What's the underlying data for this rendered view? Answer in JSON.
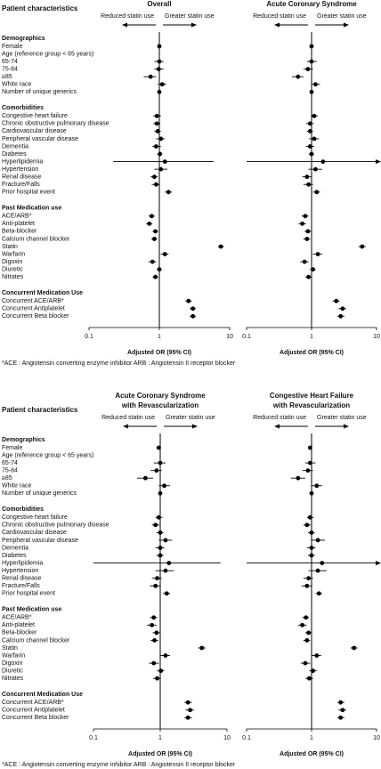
{
  "chart_data": [
    {
      "type": "forest",
      "title": "Overall",
      "row_header": "Patient characteristics",
      "left_direction": "Reduced statin use",
      "right_direction": "Greater statin use",
      "xlabel": "Adjusted OR (95% CI)",
      "log_scale": true,
      "xlim": [
        0.1,
        10
      ],
      "xticks": [
        0.1,
        1,
        10
      ],
      "color": "#000000",
      "note": "*ACE : Angiotensin converting enzyme inhibitor   ARB : Angiotensin II receptor blocker",
      "groups": [
        {
          "name": "Demographics",
          "categories": [
            "Female",
            "Age (reference group < 65 years)",
            "65-74",
            "75-84",
            "≥85",
            "White race",
            "Number of unique generics"
          ],
          "values": [
            1.0,
            null,
            1.0,
            0.98,
            0.75,
            1.1,
            1.0
          ],
          "lower": [
            0.95,
            null,
            0.85,
            0.85,
            0.6,
            0.95,
            0.98
          ],
          "upper": [
            1.05,
            null,
            1.15,
            1.15,
            0.9,
            1.25,
            1.02
          ]
        },
        {
          "name": "Comorbidities",
          "categories": [
            "Congestive heart failure",
            "Chronic obstructive pulmonary disease",
            "Cardiovascular disease",
            "Peripheral vascular disease",
            "Dementia",
            "Diabetes",
            "Hyperlipidemia",
            "Hypertension",
            "Renal disease",
            "Fracture/Falls",
            "Prior hospital event"
          ],
          "values": [
            0.92,
            0.92,
            0.95,
            1.05,
            0.9,
            1.02,
            1.2,
            1.05,
            0.85,
            0.9,
            1.35
          ],
          "lower": [
            0.82,
            0.82,
            0.85,
            0.9,
            0.8,
            0.93,
            0.22,
            0.85,
            0.75,
            0.78,
            1.2
          ],
          "upper": [
            1.05,
            1.03,
            1.05,
            1.2,
            1.05,
            1.1,
            5.9,
            1.3,
            0.95,
            1.02,
            1.5
          ]
        },
        {
          "name": "Past Medication use",
          "categories": [
            "ACE/ARB*",
            "Anti-platelet",
            "Beta-blocker",
            "Calcium channel blocker",
            "Statin",
            "Warfarin",
            "Digoxin",
            "Diuretic",
            "Nitrates"
          ],
          "values": [
            0.78,
            0.72,
            0.88,
            0.85,
            7.5,
            1.2,
            0.8,
            1.0,
            0.88
          ],
          "lower": [
            0.7,
            0.65,
            0.8,
            0.77,
            6.8,
            1.05,
            0.7,
            0.92,
            0.8
          ],
          "upper": [
            0.86,
            0.8,
            0.96,
            0.93,
            8.3,
            1.35,
            0.9,
            1.08,
            0.96
          ]
        },
        {
          "name": "Concurrent Medication Use",
          "categories": [
            "Concurrent ACE/ARB*",
            "Concurrent Antiplatelet",
            "Concurrent Beta blocker"
          ],
          "values": [
            2.6,
            3.0,
            3.0
          ],
          "lower": [
            2.35,
            2.7,
            2.7
          ],
          "upper": [
            2.9,
            3.3,
            3.3
          ]
        }
      ]
    },
    {
      "type": "forest",
      "title": "Acute Coronary Syndrome",
      "left_direction": "Reduced statin use",
      "right_direction": "Greater statin use",
      "xlabel": "Adjusted OR (95% CI)",
      "log_scale": true,
      "xlim": [
        0.1,
        10
      ],
      "xticks": [
        0.1,
        1,
        10
      ],
      "color": "#000000",
      "groups": [
        {
          "values": [
            1.0,
            null,
            1.0,
            0.88,
            0.62,
            1.15,
            1.0
          ],
          "lower": [
            0.93,
            null,
            0.85,
            0.75,
            0.5,
            1.0,
            0.97
          ],
          "upper": [
            1.07,
            null,
            1.2,
            1.05,
            0.75,
            1.35,
            1.03
          ]
        },
        {
          "values": [
            1.1,
            0.95,
            0.95,
            1.1,
            0.95,
            1.0,
            1.5,
            1.15,
            0.85,
            0.9,
            1.2
          ],
          "lower": [
            0.98,
            0.82,
            0.85,
            0.92,
            0.82,
            0.9,
            0.1,
            0.9,
            0.72,
            0.75,
            1.05
          ],
          "upper": [
            1.25,
            1.08,
            1.05,
            1.3,
            1.1,
            1.1,
            10,
            1.45,
            1.0,
            1.05,
            1.35
          ]
        },
        {
          "values": [
            0.8,
            0.72,
            0.88,
            0.85,
            6.0,
            1.25,
            0.78,
            1.05,
            0.9
          ],
          "lower": [
            0.7,
            0.63,
            0.78,
            0.75,
            5.3,
            1.05,
            0.67,
            0.95,
            0.8
          ],
          "upper": [
            0.9,
            0.82,
            0.98,
            0.95,
            6.8,
            1.45,
            0.9,
            1.15,
            1.0
          ]
        },
        {
          "values": [
            2.4,
            3.0,
            2.8
          ],
          "lower": [
            2.1,
            2.6,
            2.5
          ],
          "upper": [
            2.7,
            3.4,
            3.2
          ]
        }
      ]
    },
    {
      "type": "forest",
      "title": [
        "Acute Coronary Syndrome",
        "with Revascularization"
      ],
      "row_header": "Patient characteristics",
      "left_direction": "Reduced statin use",
      "right_direction": "Greater statin use",
      "xlabel": "Adjusted OR (95% CI)",
      "log_scale": true,
      "xlim": [
        0.1,
        10
      ],
      "xticks": [
        0.1,
        1,
        10
      ],
      "color": "#000000",
      "note": "*ACE : Angiotensin converting enzyme inhibitor   ARB : Angiotensin II receptor blocker",
      "groups": [
        {
          "name": "Demographics",
          "categories": [
            "Female",
            "Age (reference group < 65 years)",
            "65-74",
            "75-84",
            "≥85",
            "White race",
            "Number of unique generics"
          ],
          "values": [
            0.95,
            null,
            1.0,
            0.88,
            0.6,
            1.15,
            1.0
          ],
          "lower": [
            0.88,
            null,
            0.8,
            0.72,
            0.45,
            0.95,
            0.97
          ],
          "upper": [
            1.03,
            null,
            1.2,
            1.05,
            0.78,
            1.4,
            1.03
          ]
        },
        {
          "name": "Comorbidities",
          "categories": [
            "Congestive heart failure",
            "Chronic obstructive pulmonary disease",
            "Cardiovascular disease",
            "Peripheral vascular disease",
            "Dementia",
            "Diabetes",
            "Hyperlipidemia",
            "Hypertension",
            "Renal disease",
            "Fracture/Falls",
            "Prior hospital event"
          ],
          "values": [
            0.95,
            0.85,
            1.0,
            1.2,
            1.0,
            1.0,
            1.35,
            1.2,
            0.9,
            0.85,
            1.25
          ],
          "lower": [
            0.85,
            0.75,
            0.88,
            0.95,
            0.85,
            0.88,
            0.1,
            0.85,
            0.75,
            0.7,
            1.1
          ],
          "upper": [
            1.08,
            0.97,
            1.12,
            1.5,
            1.15,
            1.12,
            8,
            1.6,
            1.05,
            1.02,
            1.4
          ]
        },
        {
          "name": "Past Medication use",
          "categories": [
            "ACE/ARB*",
            "Anti-platelet",
            "Beta-blocker",
            "Calcium channel blocker",
            "Statin",
            "Warfarin",
            "Digoxin",
            "Diuretic",
            "Nitrates"
          ],
          "values": [
            0.8,
            0.75,
            0.88,
            0.82,
            4.2,
            1.2,
            0.8,
            1.02,
            0.9
          ],
          "lower": [
            0.7,
            0.63,
            0.77,
            0.72,
            3.7,
            1.0,
            0.68,
            0.9,
            0.78
          ],
          "upper": [
            0.9,
            0.88,
            1.0,
            0.93,
            4.8,
            1.4,
            0.95,
            1.15,
            1.02
          ]
        },
        {
          "name": "Concurrent Medication Use",
          "categories": [
            "Concurrent ACE/ARB*",
            "Concurrent Antiplatelet",
            "Concurrent Beta blocker"
          ],
          "values": [
            2.6,
            2.8,
            2.6
          ],
          "lower": [
            2.3,
            2.4,
            2.3
          ],
          "upper": [
            3.0,
            3.2,
            3.0
          ]
        }
      ]
    },
    {
      "type": "forest",
      "title": [
        "Congestive Heart Failure",
        "with Revascularization"
      ],
      "left_direction": "Reduced statin use",
      "right_direction": "Greater statin use",
      "xlabel": "Adjusted OR (95% CI)",
      "log_scale": true,
      "xlim": [
        0.1,
        10
      ],
      "xticks": [
        0.1,
        1,
        10
      ],
      "color": "#000000",
      "groups": [
        {
          "values": [
            0.95,
            null,
            0.95,
            0.88,
            0.62,
            1.2,
            1.0
          ],
          "lower": [
            0.88,
            null,
            0.8,
            0.72,
            0.48,
            0.98,
            0.97
          ],
          "upper": [
            1.03,
            null,
            1.15,
            1.05,
            0.8,
            1.45,
            1.03
          ]
        },
        {
          "values": [
            0.95,
            0.85,
            1.0,
            1.25,
            1.0,
            1.0,
            1.45,
            1.25,
            0.9,
            0.85,
            1.3
          ],
          "lower": [
            0.85,
            0.75,
            0.88,
            0.98,
            0.85,
            0.88,
            0.1,
            0.9,
            0.75,
            0.7,
            1.15
          ],
          "upper": [
            1.08,
            0.97,
            1.12,
            1.6,
            1.15,
            1.12,
            10,
            1.7,
            1.05,
            1.02,
            1.45
          ]
        },
        {
          "values": [
            0.82,
            0.72,
            0.9,
            0.85,
            4.5,
            1.2,
            0.8,
            1.05,
            0.92
          ],
          "lower": [
            0.72,
            0.62,
            0.8,
            0.75,
            4.0,
            1.0,
            0.68,
            0.92,
            0.8
          ],
          "upper": [
            0.92,
            0.84,
            1.0,
            0.95,
            5.1,
            1.4,
            0.95,
            1.2,
            1.05
          ]
        },
        {
          "values": [
            2.8,
            3.0,
            2.8
          ],
          "lower": [
            2.5,
            2.6,
            2.5
          ],
          "upper": [
            3.2,
            3.4,
            3.2
          ]
        }
      ]
    }
  ]
}
